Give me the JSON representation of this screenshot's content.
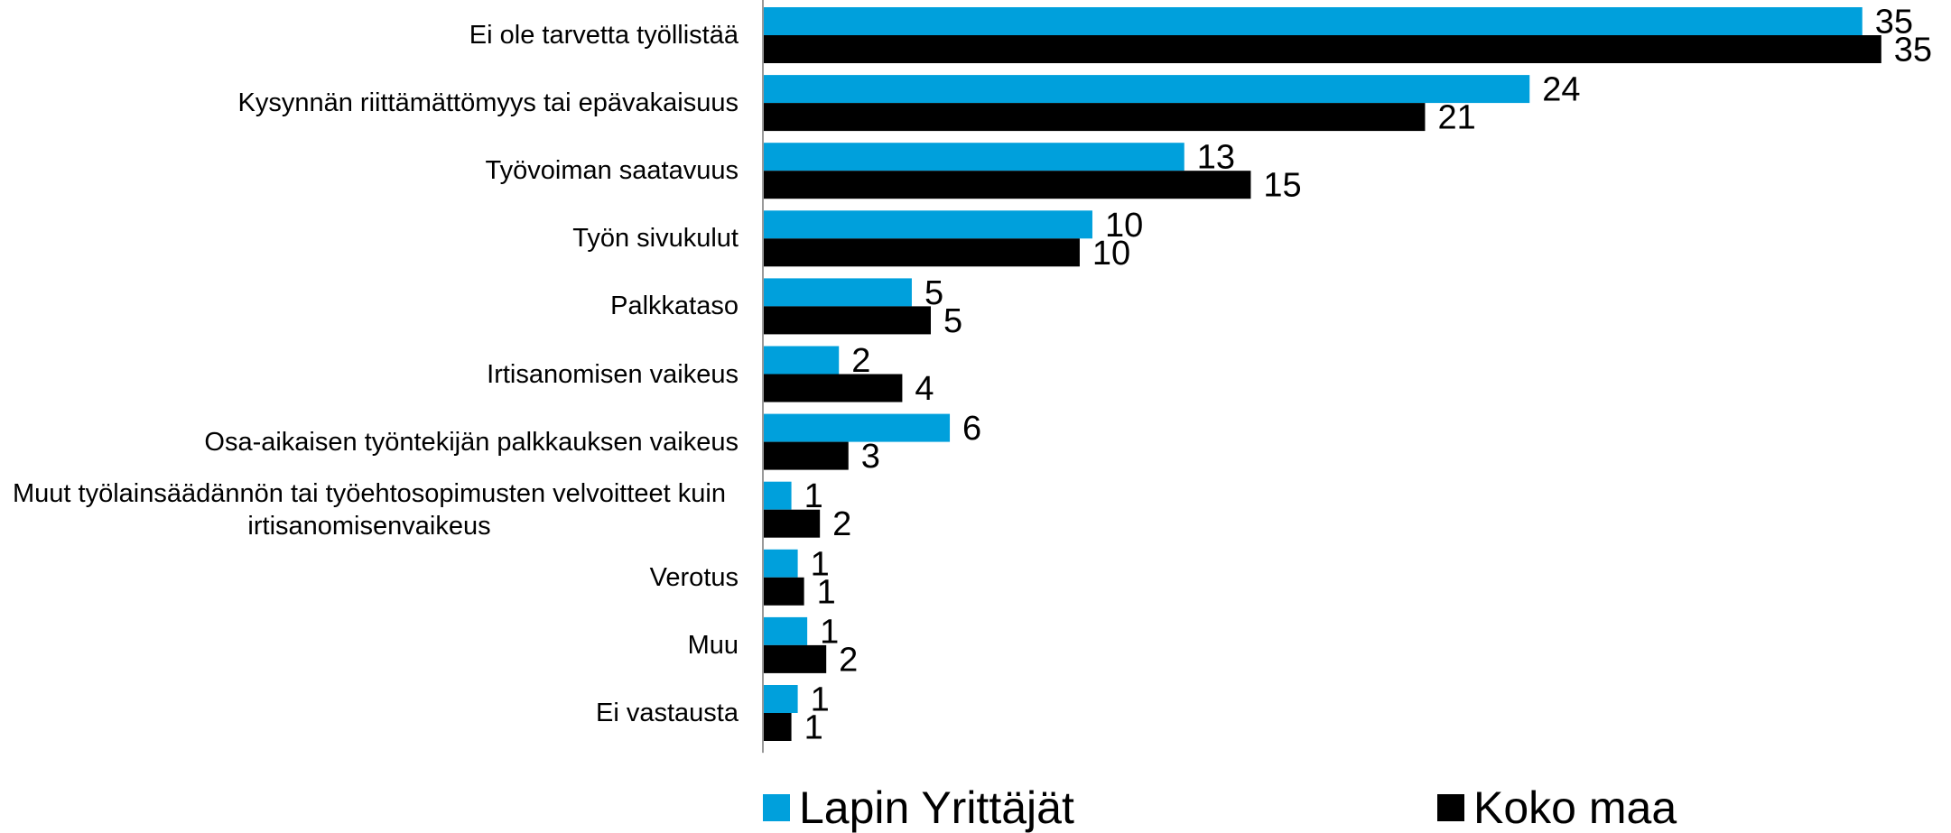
{
  "chart_data": {
    "type": "bar",
    "orientation": "horizontal",
    "categories": [
      "Ei ole tarvetta työllistää",
      "Kysynnän riittämättömyys tai epävakaisuus",
      "Työvoiman saatavuus",
      "Työn sivukulut",
      "Palkkataso",
      "Irtisanomisen vaikeus",
      "Osa-aikaisen työntekijän palkkauksen vaikeus",
      "Muut työlainsäädännön tai työehtosopimusten velvoitteet kuin irtisanomisenvaikeus",
      "Verotus",
      "Muu",
      "Ei vastausta"
    ],
    "series": [
      {
        "name": "Lapin Yrittäjät",
        "color": "#00a0dc",
        "values": [
          34.7,
          24.2,
          13.3,
          10.4,
          4.7,
          2.4,
          5.9,
          0.9,
          1.1,
          1.4,
          1.1
        ],
        "value_labels": [
          "35",
          "24",
          "13",
          "10",
          "5",
          "2",
          "6",
          "1",
          "1",
          "1",
          "1"
        ]
      },
      {
        "name": "Koko maa",
        "color": "#000000",
        "values": [
          35.3,
          20.9,
          15.4,
          10.0,
          5.3,
          4.4,
          2.7,
          1.8,
          1.3,
          2.0,
          0.9
        ],
        "value_labels": [
          "35",
          "21",
          "15",
          "10",
          "5",
          "4",
          "3",
          "2",
          "1",
          "2",
          "1"
        ]
      }
    ],
    "xlim": [
      0,
      37.5
    ],
    "grid": false,
    "legend": "bottom"
  }
}
